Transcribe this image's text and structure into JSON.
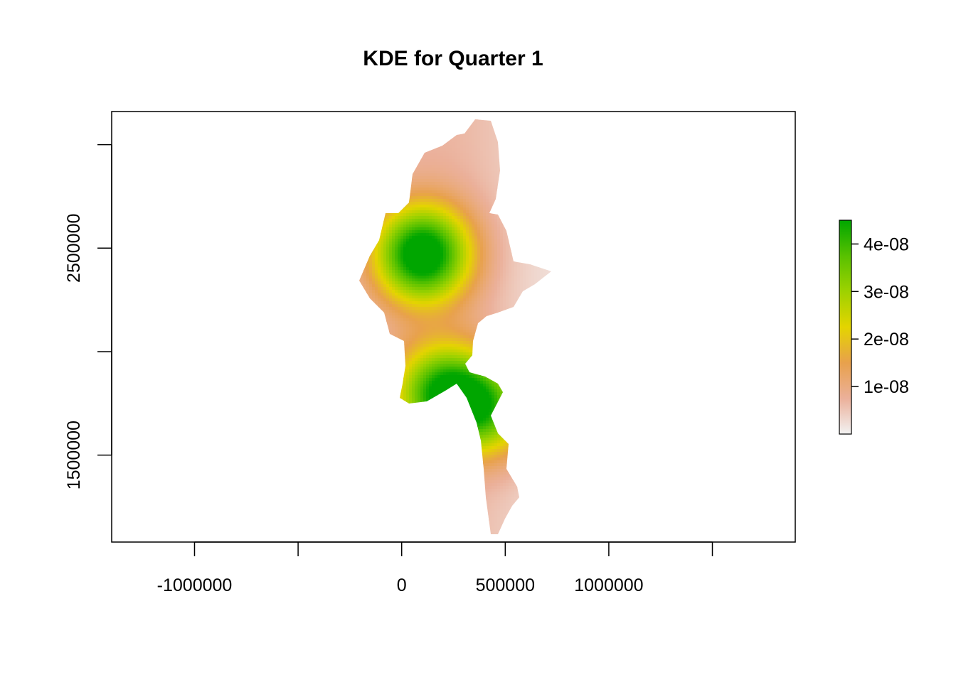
{
  "chart_data": {
    "type": "heatmap",
    "title": "KDE for Quarter 1",
    "xlabel": "",
    "ylabel": "",
    "xlim": [
      -1400000,
      1900000
    ],
    "ylim": [
      1080000,
      3160000
    ],
    "x_ticks": [
      -1000000,
      -500000,
      0,
      500000,
      1000000,
      1500000
    ],
    "x_tick_labels": [
      "-1000000",
      "",
      "0",
      "500000",
      "1000000",
      ""
    ],
    "y_ticks": [
      1500000,
      2000000,
      2500000,
      3000000
    ],
    "y_tick_labels": [
      "1500000",
      "",
      "2500000",
      ""
    ],
    "colorbar": {
      "range": [
        0,
        4.5e-08
      ],
      "ticks": [
        1e-08,
        2e-08,
        3e-08,
        4e-08
      ],
      "tick_labels": [
        "1e-08",
        "2e-08",
        "3e-08",
        "4e-08"
      ],
      "colors": [
        "#f2f2f2",
        "#ebb09a",
        "#e8a14c",
        "#e4d400",
        "#9ed200",
        "#58c100",
        "#00a600"
      ]
    },
    "density_peaks": [
      {
        "x": 100000,
        "y": 2470000,
        "value": 4.5e-08
      },
      {
        "x": 200000,
        "y": 1800000,
        "value": 3.6e-08
      },
      {
        "x": 420000,
        "y": 1720000,
        "value": 2.8e-08
      }
    ],
    "grid": false,
    "legend": "right"
  }
}
